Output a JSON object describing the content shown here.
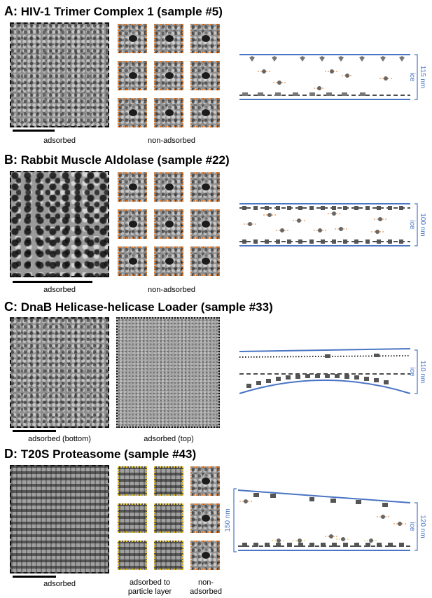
{
  "panels": [
    {
      "letter": "A:",
      "title": "HIV-1 Trimer Complex 1 (sample #5)",
      "caption_left": "adsorbed",
      "caption_right": "non-adsorbed",
      "thickness_label": "115 nm",
      "ice_label": "ice"
    },
    {
      "letter": "B:",
      "title": "Rabbit Muscle Aldolase (sample #22)",
      "caption_left": "adsorbed",
      "caption_right": "non-adsorbed",
      "thickness_label": "100 nm",
      "ice_label": "ice"
    },
    {
      "letter": "C:",
      "title": "DnaB Helicase-helicase Loader (sample #33)",
      "caption_left": "adsorbed (bottom)",
      "caption_right": "adsorbed (top)",
      "thickness_label": "110 nm",
      "ice_label": "ice"
    },
    {
      "letter": "D:",
      "title": "T20S Proteasome (sample #43)",
      "caption_left": "adsorbed",
      "caption_mid_line1": "adsorbed to",
      "caption_mid_line2": "particle layer",
      "caption_right_line1": "non-",
      "caption_right_line2": "adsorbed",
      "thickness_label_left": "150 nm",
      "thickness_label_right": "120 nm",
      "ice_label": "ice"
    }
  ],
  "colors": {
    "ice_boundary": "#4a74c4",
    "non_adsorbed_marker": "#e07a2a",
    "particle_layer_marker": "#e6c229"
  }
}
